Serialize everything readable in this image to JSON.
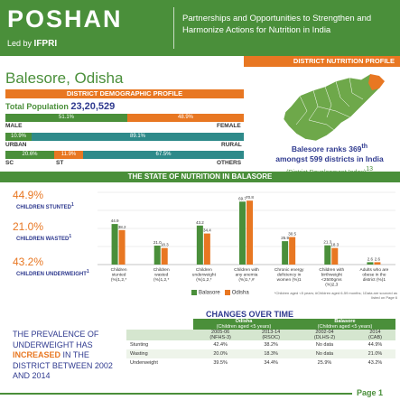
{
  "header": {
    "logo": "POSHAN",
    "led_by": "Led by",
    "led_by_org": "IFPRI",
    "tagline": "Partnerships and Opportunities to Strengthen and Harmonize Actions for Nutrition in India"
  },
  "profile_bar": "DISTRICT NUTRITION PROFILE",
  "district_title": "Balesore, Odisha",
  "demographic_bar": "DISTRICT DEMOGRAPHIC PROFILE",
  "total_population_label": "Total Population",
  "total_population_value": "23,20,529",
  "demographics": {
    "male_pct": "51.1%",
    "female_pct": "48.9%",
    "male_label": "MALE",
    "female_label": "FEMALE",
    "urban_pct": "10.9%",
    "rural_pct": "89.1%",
    "urban_label": "URBAN",
    "rural_label": "RURAL",
    "sc_pct": "20.6%",
    "st_pct": "11.9%",
    "others_pct": "67.5%",
    "sc_label": "SC",
    "st_label": "ST",
    "others_label": "OTHERS",
    "male": 51.1,
    "urban": 10.9,
    "sc": 20.6,
    "st": 11.9
  },
  "rank": {
    "line1": "Balesore ranks 369",
    "sup": "th",
    "line2": "amongst 599 districts in India",
    "index": "(District Development Index)",
    "index_sup": "13"
  },
  "state_bar": "THE STATE OF NUTRITION IN BALASORE",
  "kpis": [
    {
      "value": "44.9%",
      "label": "CHILDREN STUNTED",
      "sup": "1"
    },
    {
      "value": "21.0%",
      "label": "CHILDREN WASTED",
      "sup": "1"
    },
    {
      "value": "43.2%",
      "label": "CHILDREN UNDERWEIGHT",
      "sup": "1"
    }
  ],
  "chart_data": {
    "type": "bar",
    "categories": [
      "Children stunted (%)1,2,*",
      "Children wasted (%)1,2,*",
      "Children underweight (%)1,2,*",
      "Children with any anemia (%)1,*,#",
      "Chronic energy deficiency in women (%)1",
      "Children with birthweight <2500gms (%)2,3",
      "Adults who are obese in the district (%)1"
    ],
    "series": [
      {
        "name": "Balasore",
        "values": [
          44.9,
          21.0,
          43.2,
          69.7,
          25.9,
          21.3,
          2.6
        ]
      },
      {
        "name": "Odisha",
        "values": [
          38.2,
          18.3,
          34.4,
          70.8,
          30.5,
          18.3,
          2.6
        ]
      }
    ],
    "value_labels": {
      "Balasore": [
        "44.9",
        "21.0",
        "43.2",
        "69.7",
        "25.9",
        "21.3",
        "2.6"
      ],
      "Odisha": [
        "38.2",
        "18.3",
        "34.4",
        "70.8",
        "30.5",
        "18.3",
        "2.6"
      ]
    },
    "ylim": [
      0,
      80
    ],
    "legend_position": "bottom",
    "colors": {
      "Balasore": "#4a8f3a",
      "Odisha": "#e87722"
    }
  },
  "chart_footnote": "*Children aged <5 years; #Children aged 6-59 months; 1Data are sourced as listed on Page 6",
  "changes": {
    "title": "CHANGES OVER TIME",
    "odisha_header": "Odisha",
    "odisha_sub": "(Children aged <5 years)",
    "balasore_header": "Balasore",
    "balasore_sub": "(Children aged <5 years)",
    "years": [
      "2005-06",
      "2013-14",
      "2002-04",
      "2014"
    ],
    "sources": [
      "(NFHS-3)",
      "(RSOC)",
      "(DLHS-2)",
      "(CAB)"
    ],
    "rows": [
      {
        "label": "Stunting",
        "values": [
          "42.4%",
          "38.2%",
          "No data",
          "44.9%"
        ]
      },
      {
        "label": "Wasting",
        "values": [
          "20.0%",
          "18.3%",
          "No data",
          "21.0%"
        ]
      },
      {
        "label": "Underweight",
        "values": [
          "39.5%",
          "34.4%",
          "25.9%",
          "43.2%"
        ]
      }
    ]
  },
  "prevalence": {
    "line1": "THE PREVALENCE OF UNDERWEIGHT HAS",
    "highlight": "INCREASED",
    "line2": "IN THE DISTRICT BETWEEN 2002 AND 2014"
  },
  "page_label": "Page 1"
}
